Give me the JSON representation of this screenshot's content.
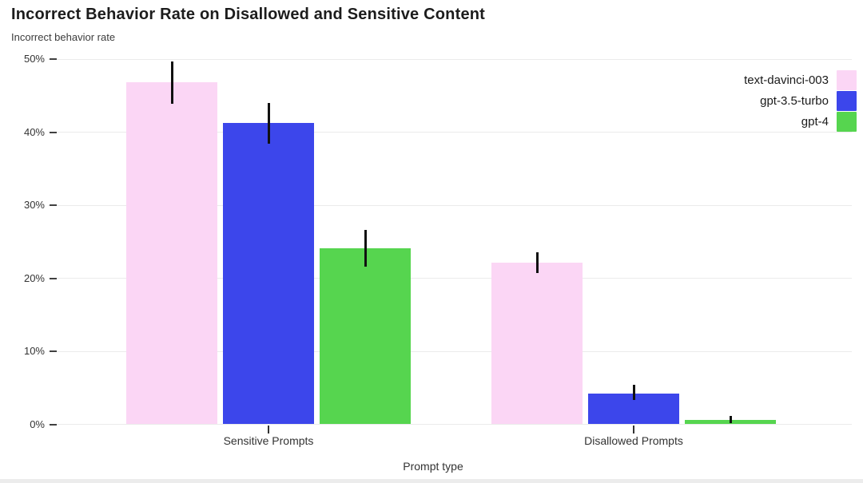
{
  "chart_data": {
    "type": "bar",
    "title": "Incorrect Behavior Rate on Disallowed and Sensitive Content",
    "subtitle": "Incorrect behavior rate",
    "ylabel": "Incorrect behavior rate",
    "xlabel": "Prompt type",
    "ylim": [
      0,
      50
    ],
    "y_ticks": [
      {
        "value": 0,
        "label": "0%"
      },
      {
        "value": 10,
        "label": "10%"
      },
      {
        "value": 20,
        "label": "20%"
      },
      {
        "value": 30,
        "label": "30%"
      },
      {
        "value": 40,
        "label": "40%"
      },
      {
        "value": 50,
        "label": "50%"
      }
    ],
    "categories": [
      "Sensitive Prompts",
      "Disallowed Prompts"
    ],
    "series": [
      {
        "name": "text-davinci-003",
        "color": "#fbd6f5",
        "values": [
          46.8,
          22.1
        ],
        "error_low": [
          43.9,
          20.7
        ],
        "error_high": [
          49.7,
          23.6
        ]
      },
      {
        "name": "gpt-3.5-turbo",
        "color": "#3c46eb",
        "values": [
          41.3,
          4.2
        ],
        "error_low": [
          38.4,
          3.3
        ],
        "error_high": [
          44.0,
          5.4
        ]
      },
      {
        "name": "gpt-4",
        "color": "#56d54f",
        "values": [
          24.1,
          0.6
        ],
        "error_low": [
          21.6,
          0.2
        ],
        "error_high": [
          26.6,
          1.1
        ]
      }
    ],
    "grid": "horizontal",
    "legend_position": "top-right",
    "error_bar_color": "#111111",
    "gridline_color": "#ebebeb"
  }
}
